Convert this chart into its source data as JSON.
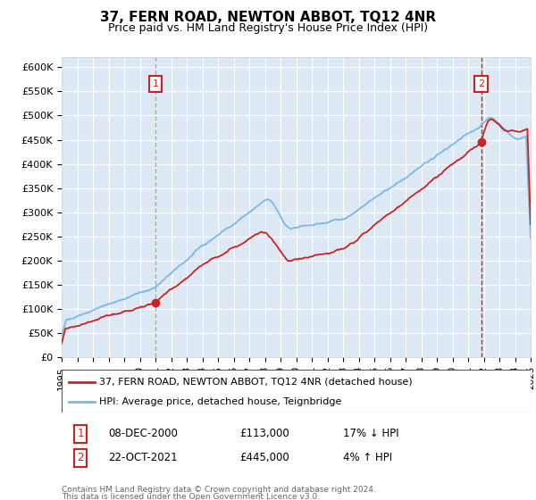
{
  "title": "37, FERN ROAD, NEWTON ABBOT, TQ12 4NR",
  "subtitle": "Price paid vs. HM Land Registry's House Price Index (HPI)",
  "background_color": "#dce9f5",
  "ylim": [
    0,
    620000
  ],
  "yticks": [
    0,
    50000,
    100000,
    150000,
    200000,
    250000,
    300000,
    350000,
    400000,
    450000,
    500000,
    550000,
    600000
  ],
  "hpi_color": "#7ab8e8",
  "price_color": "#cc2222",
  "marker1_year": 2001.0,
  "marker1_price": 113000,
  "marker2_year": 2021.83,
  "marker2_price": 445000,
  "annotation1_date": "08-DEC-2000",
  "annotation1_price": "£113,000",
  "annotation1_hpi": "17% ↓ HPI",
  "annotation2_date": "22-OCT-2021",
  "annotation2_price": "£445,000",
  "annotation2_hpi": "4% ↑ HPI",
  "legend_label1": "37, FERN ROAD, NEWTON ABBOT, TQ12 4NR (detached house)",
  "legend_label2": "HPI: Average price, detached house, Teignbridge",
  "footer": "Contains HM Land Registry data © Crown copyright and database right 2024.\nThis data is licensed under the Open Government Licence v3.0.",
  "xmin": 1995,
  "xmax": 2025,
  "grid_color": "#ffffff",
  "marker_box_color": "#cc2222",
  "vline1_color": "#aaaaaa",
  "vline2_color": "#cc2222"
}
